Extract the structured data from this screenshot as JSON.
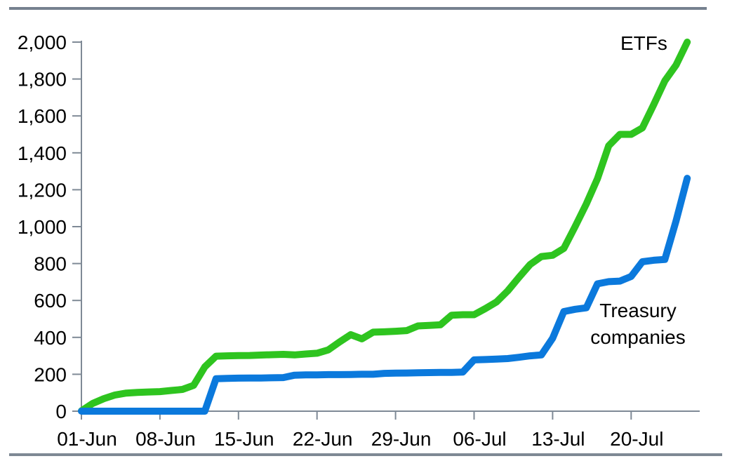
{
  "chart_data": {
    "type": "line",
    "title": "",
    "xlabel": "",
    "ylabel": "",
    "ylim": [
      0,
      2000
    ],
    "grid": false,
    "legend": "inline-text-labels",
    "x": [
      "01-Jun",
      "02-Jun",
      "03-Jun",
      "04-Jun",
      "05-Jun",
      "06-Jun",
      "07-Jun",
      "08-Jun",
      "09-Jun",
      "10-Jun",
      "11-Jun",
      "12-Jun",
      "13-Jun",
      "14-Jun",
      "15-Jun",
      "16-Jun",
      "17-Jun",
      "18-Jun",
      "19-Jun",
      "20-Jun",
      "21-Jun",
      "22-Jun",
      "23-Jun",
      "24-Jun",
      "25-Jun",
      "26-Jun",
      "27-Jun",
      "28-Jun",
      "29-Jun",
      "30-Jun",
      "01-Jul",
      "02-Jul",
      "03-Jul",
      "04-Jul",
      "05-Jul",
      "06-Jul",
      "07-Jul",
      "08-Jul",
      "09-Jul",
      "10-Jul",
      "11-Jul",
      "12-Jul",
      "13-Jul",
      "14-Jul",
      "15-Jul",
      "16-Jul",
      "17-Jul",
      "18-Jul",
      "19-Jul",
      "20-Jul",
      "21-Jul",
      "22-Jul",
      "23-Jul",
      "24-Jul",
      "25-Jul"
    ],
    "x_tick_labels": [
      "01-Jun",
      "08-Jun",
      "15-Jun",
      "22-Jun",
      "29-Jun",
      "06-Jul",
      "13-Jul",
      "20-Jul"
    ],
    "y_tick_labels": [
      "0",
      "200",
      "400",
      "600",
      "800",
      "1,000",
      "1,200",
      "1,400",
      "1,600",
      "1,800",
      "2,000"
    ],
    "series": [
      {
        "name": "ETFs",
        "color": "#2EC41F",
        "values": [
          2,
          42,
          68,
          88,
          98,
          102,
          104,
          106,
          112,
          118,
          140,
          240,
          298,
          300,
          301,
          302,
          304,
          306,
          308,
          305,
          310,
          314,
          332,
          375,
          415,
          392,
          428,
          430,
          433,
          437,
          462,
          465,
          468,
          520,
          523,
          523,
          556,
          592,
          652,
          725,
          795,
          838,
          845,
          882,
          1000,
          1123,
          1260,
          1438,
          1500,
          1500,
          1535,
          1660,
          1790,
          1875,
          2000
        ]
      },
      {
        "name": "Treasury companies",
        "color": "#0B79DC",
        "values": [
          0,
          0,
          0,
          0,
          0,
          0,
          0,
          0,
          0,
          0,
          0,
          0,
          176,
          178,
          179,
          180,
          180,
          181,
          182,
          195,
          197,
          197,
          198,
          198,
          199,
          200,
          200,
          205,
          206,
          207,
          208,
          209,
          210,
          210,
          212,
          278,
          280,
          282,
          285,
          292,
          300,
          305,
          395,
          540,
          552,
          560,
          690,
          702,
          705,
          730,
          810,
          818,
          822,
          1030,
          1262
        ]
      }
    ]
  },
  "annotations": {
    "etfs_label": "ETFs",
    "treasury_label_lines": [
      "Treasury",
      "companies"
    ]
  },
  "colors": {
    "etfs_line": "#2EC41F",
    "treasury_line": "#0B79DC",
    "axis": "#7F8A96",
    "top_border": "#76818F",
    "bottom_border": "#7E8994",
    "text": "#000000",
    "background": "#FFFFFF"
  }
}
